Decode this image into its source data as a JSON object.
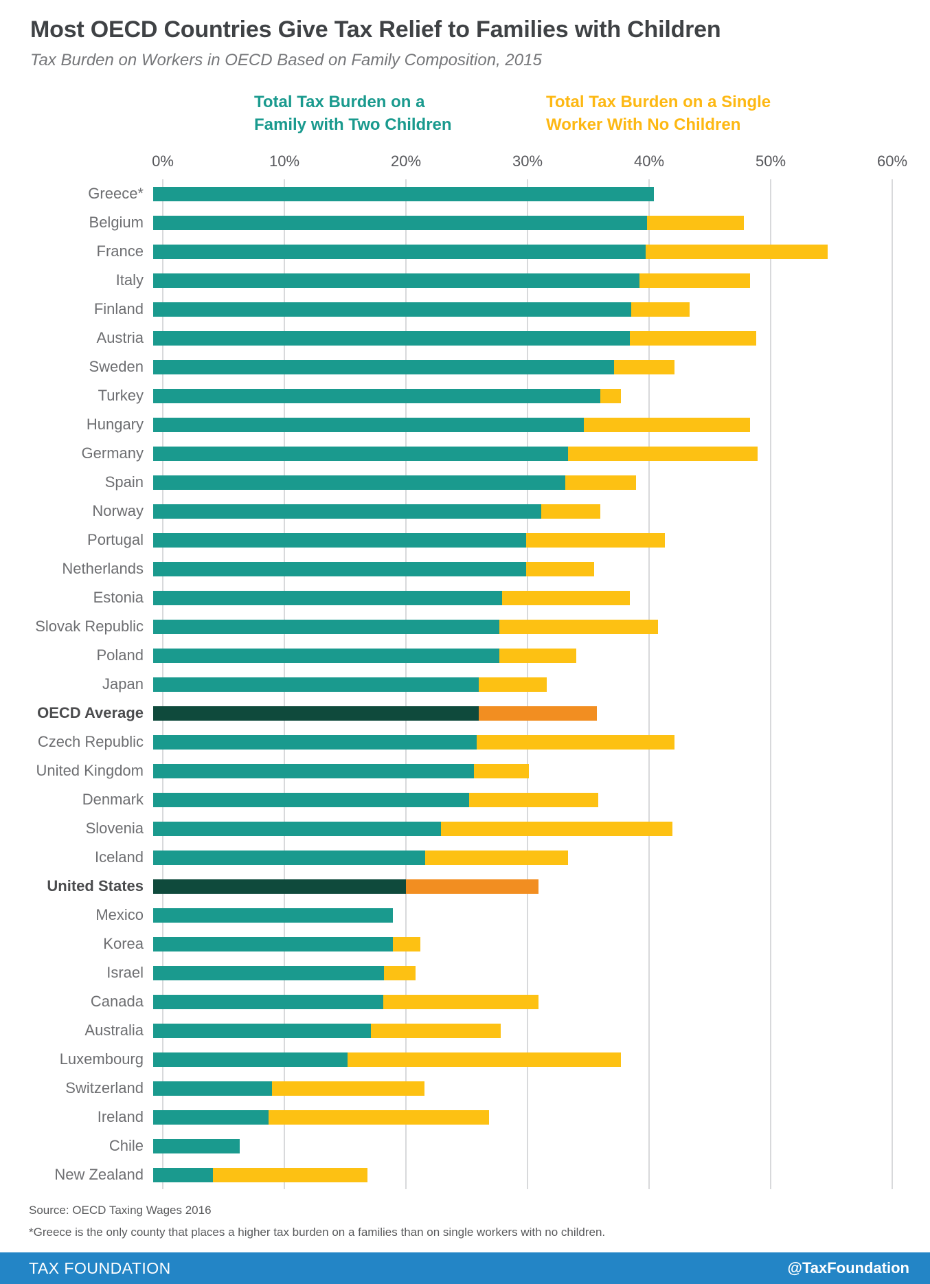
{
  "header": {
    "title": "Most OECD Countries Give Tax Relief to Families with Children",
    "subtitle": "Tax Burden on Workers in OECD Based on Family Composition, 2015"
  },
  "legend": {
    "family": {
      "line1": "Total Tax Burden on a",
      "line2": "Family with Two Children",
      "color": "#1A9A8E"
    },
    "single": {
      "line1": "Total Tax Burden on a Single",
      "line2": "Worker With No Children",
      "color": "#FDB813"
    }
  },
  "chart_data": {
    "type": "bar",
    "orientation": "horizontal",
    "title": "Most OECD Countries Give Tax Relief to Families with Children",
    "subtitle": "Tax Burden on Workers in OECD Based on Family Composition, 2015",
    "xlabel": "",
    "ylabel": "",
    "xlim": [
      0,
      60
    ],
    "x_tick_labels": [
      "0%",
      "10%",
      "20%",
      "30%",
      "40%",
      "50%",
      "60%"
    ],
    "grid": "vertical",
    "legend_position": "top",
    "categories": [
      "Greece*",
      "Belgium",
      "France",
      "Italy",
      "Finland",
      "Austria",
      "Sweden",
      "Turkey",
      "Hungary",
      "Germany",
      "Spain",
      "Norway",
      "Portugal",
      "Netherlands",
      "Estonia",
      "Slovak Republic",
      "Poland",
      "Japan",
      "OECD Average",
      "Czech Republic",
      "United Kingdom",
      "Denmark",
      "Slovenia",
      "Iceland",
      "United States",
      "Mexico",
      "Korea",
      "Israel",
      "Canada",
      "Australia",
      "Luxembourg",
      "Switzerland",
      "Ireland",
      "Chile",
      "New Zealand"
    ],
    "series": [
      {
        "name": "Total Tax Burden on a Family with Two Children",
        "color": "#1A9A8E",
        "highlight_color": "#0F4A3C",
        "values": [
          41.2,
          40.6,
          40.5,
          40.0,
          39.3,
          39.2,
          37.9,
          36.8,
          35.4,
          34.1,
          33.9,
          31.9,
          30.7,
          30.7,
          28.7,
          28.5,
          28.5,
          26.8,
          26.8,
          26.6,
          26.4,
          26.0,
          23.7,
          22.4,
          20.8,
          19.7,
          19.7,
          19.0,
          18.9,
          17.9,
          16.0,
          9.8,
          9.5,
          7.1,
          4.9
        ]
      },
      {
        "name": "Total Tax Burden on a Single Worker With No Children",
        "color": "#FDC113",
        "highlight_color": "#F28E21",
        "values": [
          null,
          48.6,
          55.5,
          49.1,
          44.1,
          49.6,
          42.9,
          38.5,
          49.1,
          49.7,
          39.7,
          36.8,
          42.1,
          36.3,
          39.2,
          41.5,
          34.8,
          32.4,
          36.5,
          42.9,
          30.9,
          36.6,
          42.7,
          34.1,
          31.7,
          null,
          22.0,
          21.6,
          31.7,
          28.6,
          38.5,
          22.3,
          27.6,
          null,
          17.6
        ]
      }
    ],
    "highlighted_categories": [
      "OECD Average",
      "United States"
    ],
    "note": "Single-worker bar is drawn as a colored extension from the family value out to the single-worker value; rows where it is missing have a single-worker burden equal to or lower than the family burden."
  },
  "footer": {
    "source": "Source: OECD Taxing Wages 2016",
    "footnote": "*Greece is the only county that places a higher tax burden on a families than on single workers with no children.",
    "brand": "TAX FOUNDATION",
    "handle": "@TaxFoundation"
  },
  "colors": {
    "family_bar": "#1A9A8E",
    "single_bar": "#FDC113",
    "family_bar_highlight": "#0F4A3C",
    "single_bar_highlight": "#F28E21",
    "footer_bar": "#2385C6",
    "gridline": "#D8D9DB",
    "title_text": "#3F4245",
    "label_text": "#6D6E71"
  }
}
